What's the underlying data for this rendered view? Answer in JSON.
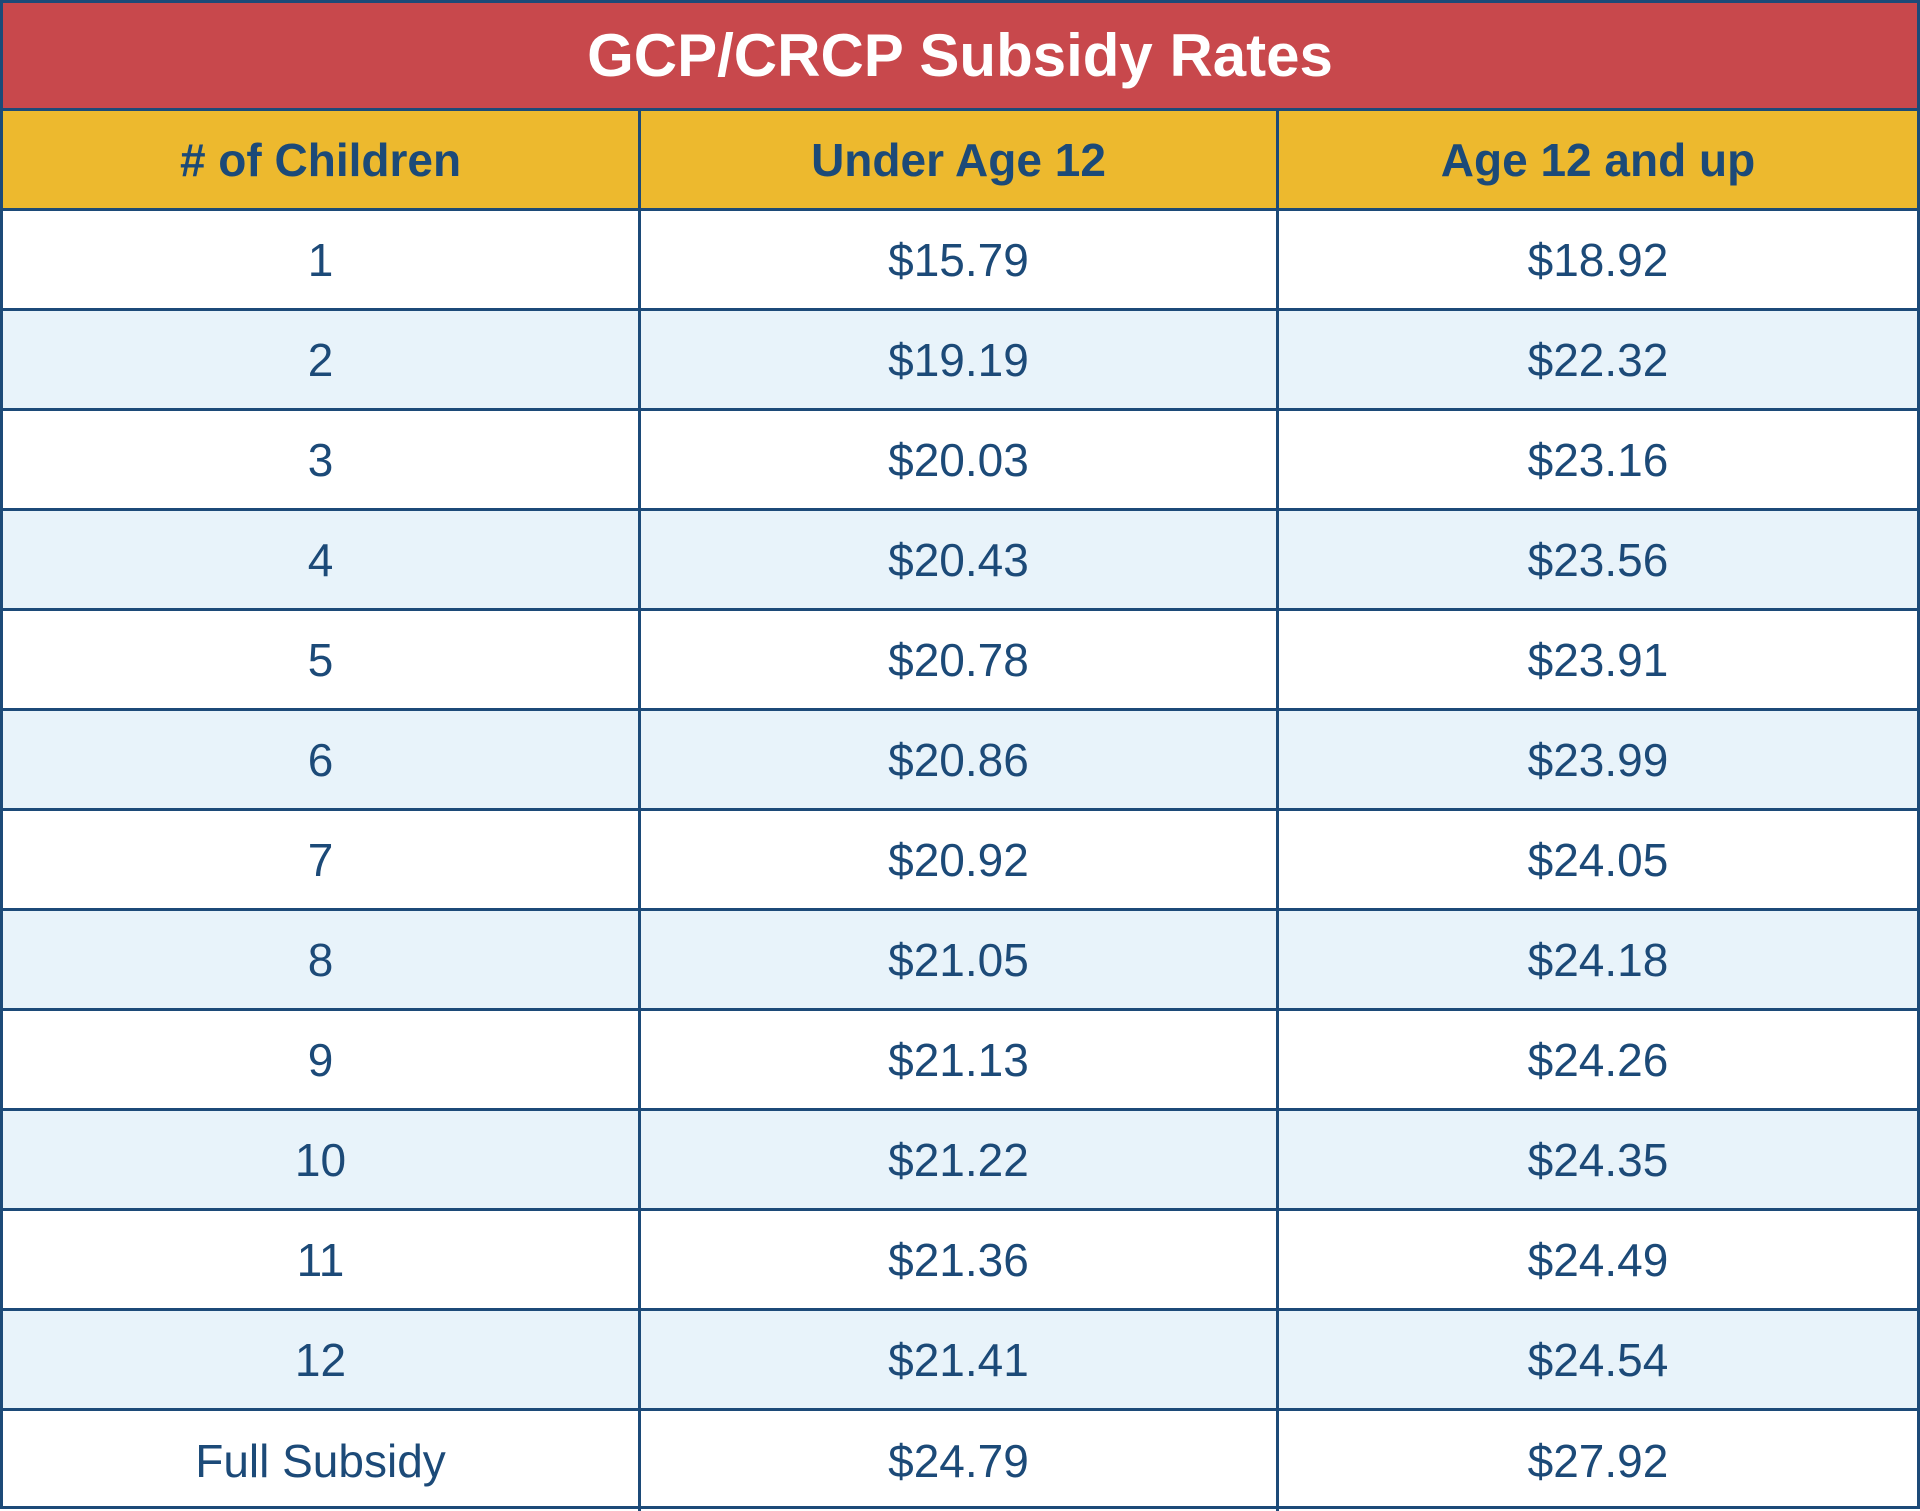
{
  "chart_data": {
    "type": "table",
    "title": "GCP/CRCP Subsidy Rates",
    "columns": [
      "# of Children",
      "Under Age 12",
      "Age 12 and up"
    ],
    "rows": [
      [
        "1",
        "$15.79",
        "$18.92"
      ],
      [
        "2",
        "$19.19",
        "$22.32"
      ],
      [
        "3",
        "$20.03",
        "$23.16"
      ],
      [
        "4",
        "$20.43",
        "$23.56"
      ],
      [
        "5",
        "$20.78",
        "$23.91"
      ],
      [
        "6",
        "$20.86",
        "$23.99"
      ],
      [
        "7",
        "$20.92",
        "$24.05"
      ],
      [
        "8",
        "$21.05",
        "$24.18"
      ],
      [
        "9",
        "$21.13",
        "$24.26"
      ],
      [
        "10",
        "$21.22",
        "$24.35"
      ],
      [
        "11",
        "$21.36",
        "$24.49"
      ],
      [
        "12",
        "$21.41",
        "$24.54"
      ],
      [
        "Full Subsidy",
        "$24.79",
        "$27.92"
      ]
    ]
  },
  "colors": {
    "title_background": "#c8484c",
    "header_background": "#edb92e",
    "alt_row_background": "#e8f3fa",
    "text": "#1c4a78",
    "border": "#1c4a78"
  }
}
